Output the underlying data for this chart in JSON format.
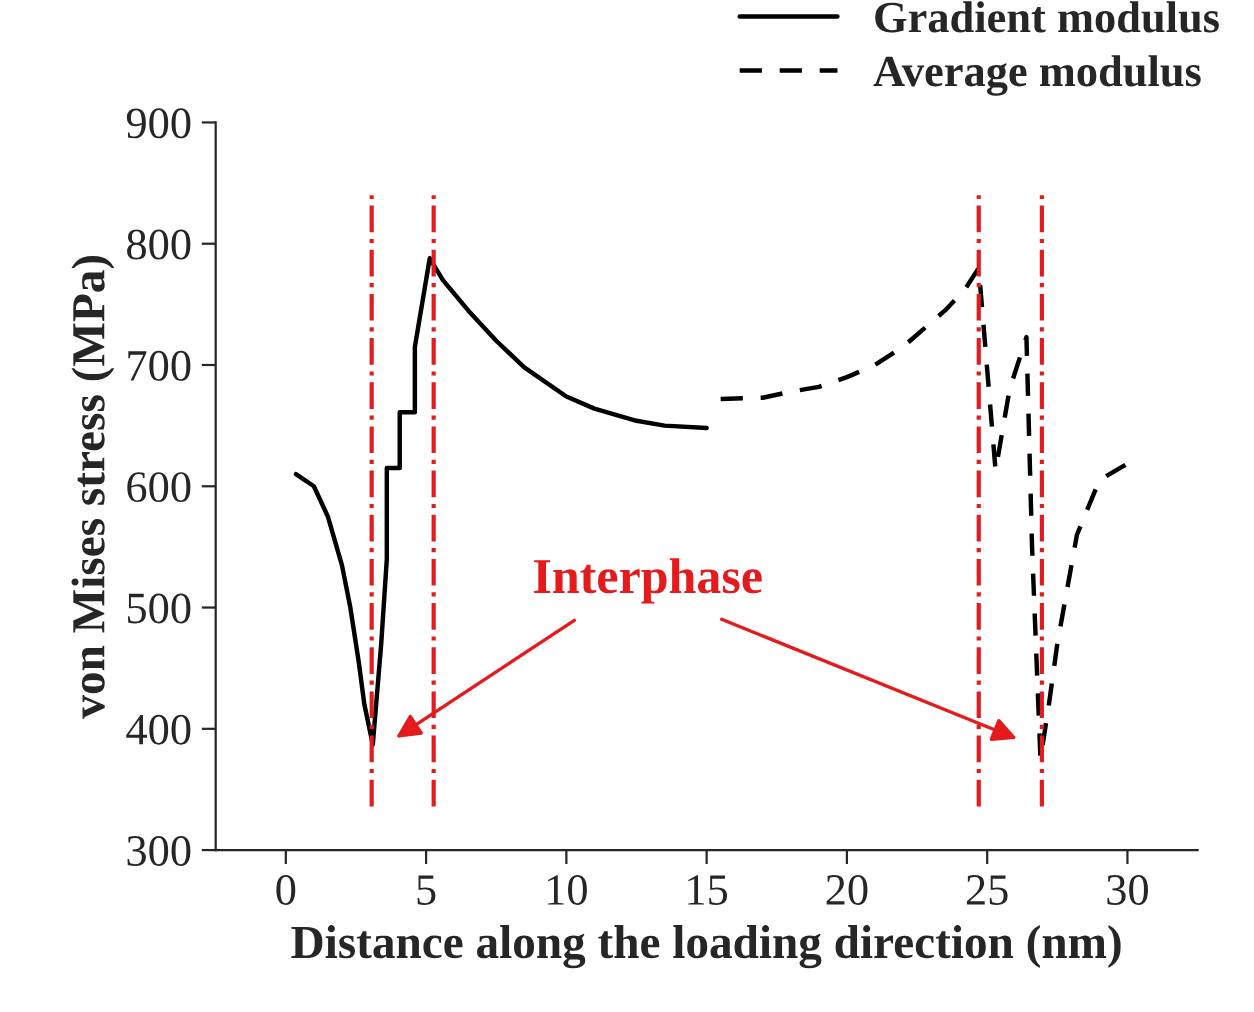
{
  "chart_data": {
    "type": "line",
    "xlabel": "Distance along the loading direction (nm)",
    "ylabel": "von Mises stress (MPa)",
    "xlim": [
      -2.5,
      32.5
    ],
    "xticks": [
      0,
      5,
      10,
      15,
      20,
      25,
      30
    ],
    "ylim": [
      300,
      900
    ],
    "yticks": [
      300,
      400,
      500,
      600,
      700,
      800,
      900
    ],
    "grid": false,
    "legend": "top right",
    "marker": "none",
    "series": [
      {
        "name": "Gradient modulus",
        "color": "#000000",
        "line_style": "solid",
        "x": [
          0.36,
          1.0,
          1.5,
          2.0,
          2.3,
          2.6,
          2.8,
          3.1,
          3.4,
          3.6,
          3.6,
          4.06,
          4.06,
          4.6,
          4.6,
          5.13,
          5.6,
          6.5,
          7.5,
          8.5,
          10,
          11,
          12.5,
          13.5,
          15
        ],
        "values": [
          610,
          600,
          575,
          535,
          500,
          455,
          420,
          387,
          470,
          540,
          615,
          615,
          661,
          661,
          715,
          788,
          770,
          745,
          720,
          698,
          674,
          664,
          654,
          650,
          648
        ]
      },
      {
        "name": "Average modulus",
        "color": "#000000",
        "line_style": "dashed",
        "x": [
          15.5,
          17,
          18,
          19,
          20,
          21,
          22,
          23,
          23.5,
          24.2,
          24.7,
          25.3,
          25.8,
          26.4,
          26.6,
          26.9,
          27.2,
          27.5,
          28.2,
          29,
          30.1
        ],
        "values": [
          672,
          673,
          678,
          682,
          690,
          700,
          715,
          735,
          745,
          762,
          780,
          613,
          680,
          723,
          550,
          375,
          420,
          470,
          560,
          605,
          620
        ]
      }
    ],
    "ref_lines": [
      {
        "axis": "x",
        "value": 3.06,
        "color": "#e41a1c",
        "line_style": "dashdot"
      },
      {
        "axis": "x",
        "value": 5.27,
        "color": "#e41a1c",
        "line_style": "dashdot"
      },
      {
        "axis": "x",
        "value": 24.7,
        "color": "#e41a1c",
        "line_style": "dashdot"
      },
      {
        "axis": "x",
        "value": 26.95,
        "color": "#e41a1c",
        "line_style": "dashdot"
      }
    ],
    "annotations": [
      "Interphase"
    ]
  }
}
